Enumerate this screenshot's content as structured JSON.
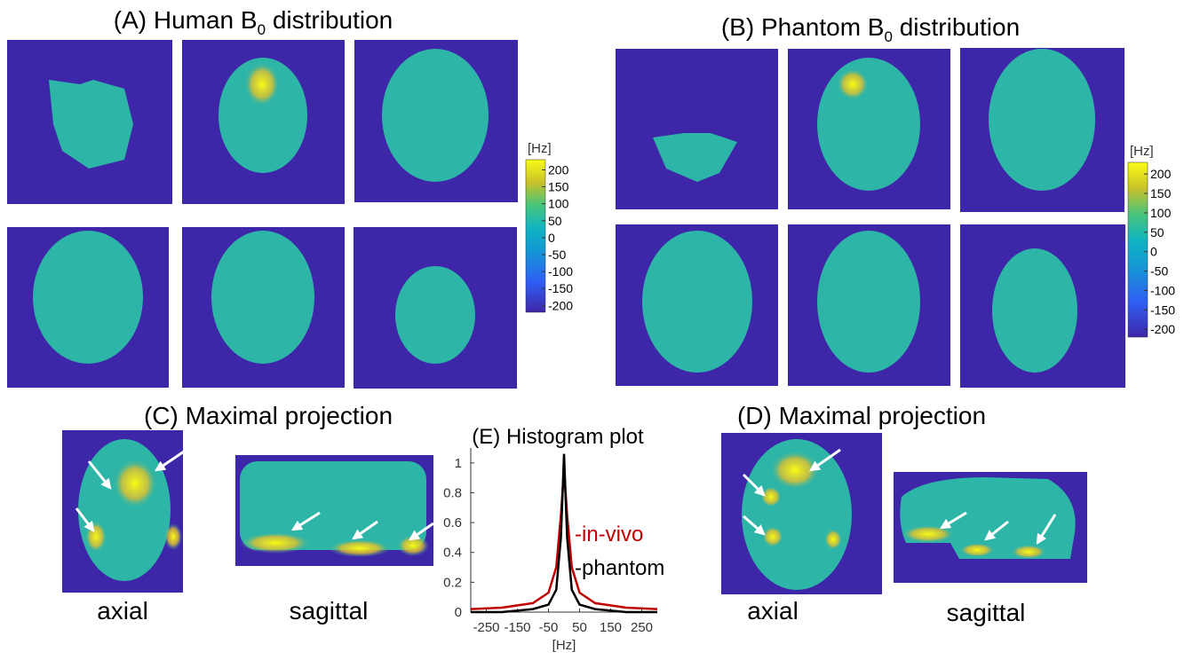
{
  "panel_a": {
    "title": {
      "pre": "(A) Human B",
      "sub": "0",
      "post": " distribution"
    },
    "colorbar": {
      "unit": "[Hz]",
      "clim": [
        -220,
        230
      ],
      "ticks": [
        200,
        150,
        100,
        50,
        0,
        -50,
        -100,
        -150,
        -200
      ]
    }
  },
  "panel_b": {
    "title": {
      "pre": "(B) Phantom B",
      "sub": "0",
      "post": " distribution"
    },
    "colorbar": {
      "unit": "[Hz]",
      "clim": [
        -220,
        230
      ],
      "ticks": [
        200,
        150,
        100,
        50,
        0,
        -50,
        -100,
        -150,
        -200
      ]
    }
  },
  "panel_c": {
    "title": "(C) Maximal projection",
    "labels": [
      "axial",
      "sagittal"
    ]
  },
  "panel_d": {
    "title": "(D) Maximal projection",
    "labels": [
      "axial",
      "sagittal"
    ]
  },
  "chart_data": {
    "type": "line",
    "title": "(E) Histogram plot",
    "x_label": "[Hz]",
    "x": [
      -300,
      -200,
      -100,
      -50,
      -25,
      -10,
      0,
      10,
      25,
      50,
      100,
      200,
      300
    ],
    "series": [
      {
        "name": "-in-vivo",
        "color": "#c00000",
        "values": [
          0.02,
          0.03,
          0.06,
          0.13,
          0.3,
          0.65,
          0.95,
          0.65,
          0.3,
          0.13,
          0.06,
          0.03,
          0.02
        ]
      },
      {
        "name": "-phantom",
        "color": "#000000",
        "values": [
          0,
          0,
          0.02,
          0.05,
          0.15,
          0.5,
          1.06,
          0.5,
          0.15,
          0.05,
          0.02,
          0,
          0
        ]
      }
    ],
    "xlim": [
      -300,
      300
    ],
    "xticks": [
      -250,
      -150,
      -50,
      50,
      150,
      250
    ],
    "ylim": [
      0,
      1.1
    ],
    "yticks": [
      0,
      0.2,
      0.4,
      0.6,
      0.8,
      1
    ]
  }
}
